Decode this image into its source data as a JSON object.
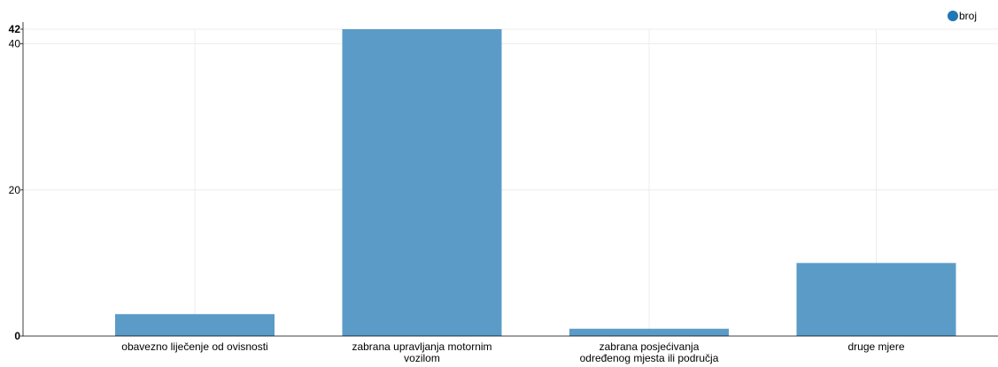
{
  "chart_data": {
    "type": "bar",
    "categories": [
      [
        "obavezno liječenje od ovisnosti"
      ],
      [
        "zabrana upravljanja motornim",
        "vozilom"
      ],
      [
        "zabrana posjećivanja",
        "određenog mjesta ili područja"
      ],
      [
        "druge mjere"
      ]
    ],
    "series": [
      {
        "name": "broj",
        "values": [
          3,
          42,
          1,
          10
        ],
        "color": "#5b9bc8"
      }
    ],
    "legend_color": "#1f77b4",
    "ylim": [
      0,
      42
    ],
    "yticks": [
      {
        "value": 0,
        "label": "0",
        "bold": true
      },
      {
        "value": 20,
        "label": "20",
        "bold": false
      },
      {
        "value": 40,
        "label": "40",
        "bold": false
      },
      {
        "value": 42,
        "label": "42",
        "bold": true
      }
    ],
    "title": "",
    "xlabel": "",
    "ylabel": "",
    "grid": true,
    "legend_position": "top-right"
  }
}
